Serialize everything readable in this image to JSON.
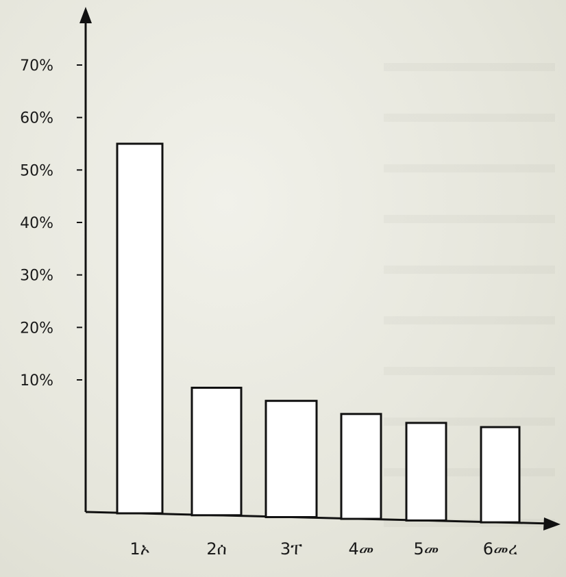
{
  "chart_data": {
    "type": "bar",
    "title": "",
    "xlabel": "",
    "ylabel": "",
    "categories": [
      "1ኦ",
      "2ሰ",
      "3ፐ",
      "4መ",
      "5መ",
      "6መረ"
    ],
    "values": [
      55,
      8.5,
      6,
      3.5,
      1.8,
      1
    ],
    "ylim": [
      0,
      70
    ],
    "yticks": [
      10,
      20,
      30,
      40,
      50,
      60,
      70
    ],
    "ytick_labels": [
      "10%",
      "20%",
      "30%",
      "40%",
      "50%",
      "60%",
      "70%"
    ],
    "grid": false,
    "legend": "none",
    "bar_fill": "#ffffff",
    "stroke_color": "#111111"
  }
}
